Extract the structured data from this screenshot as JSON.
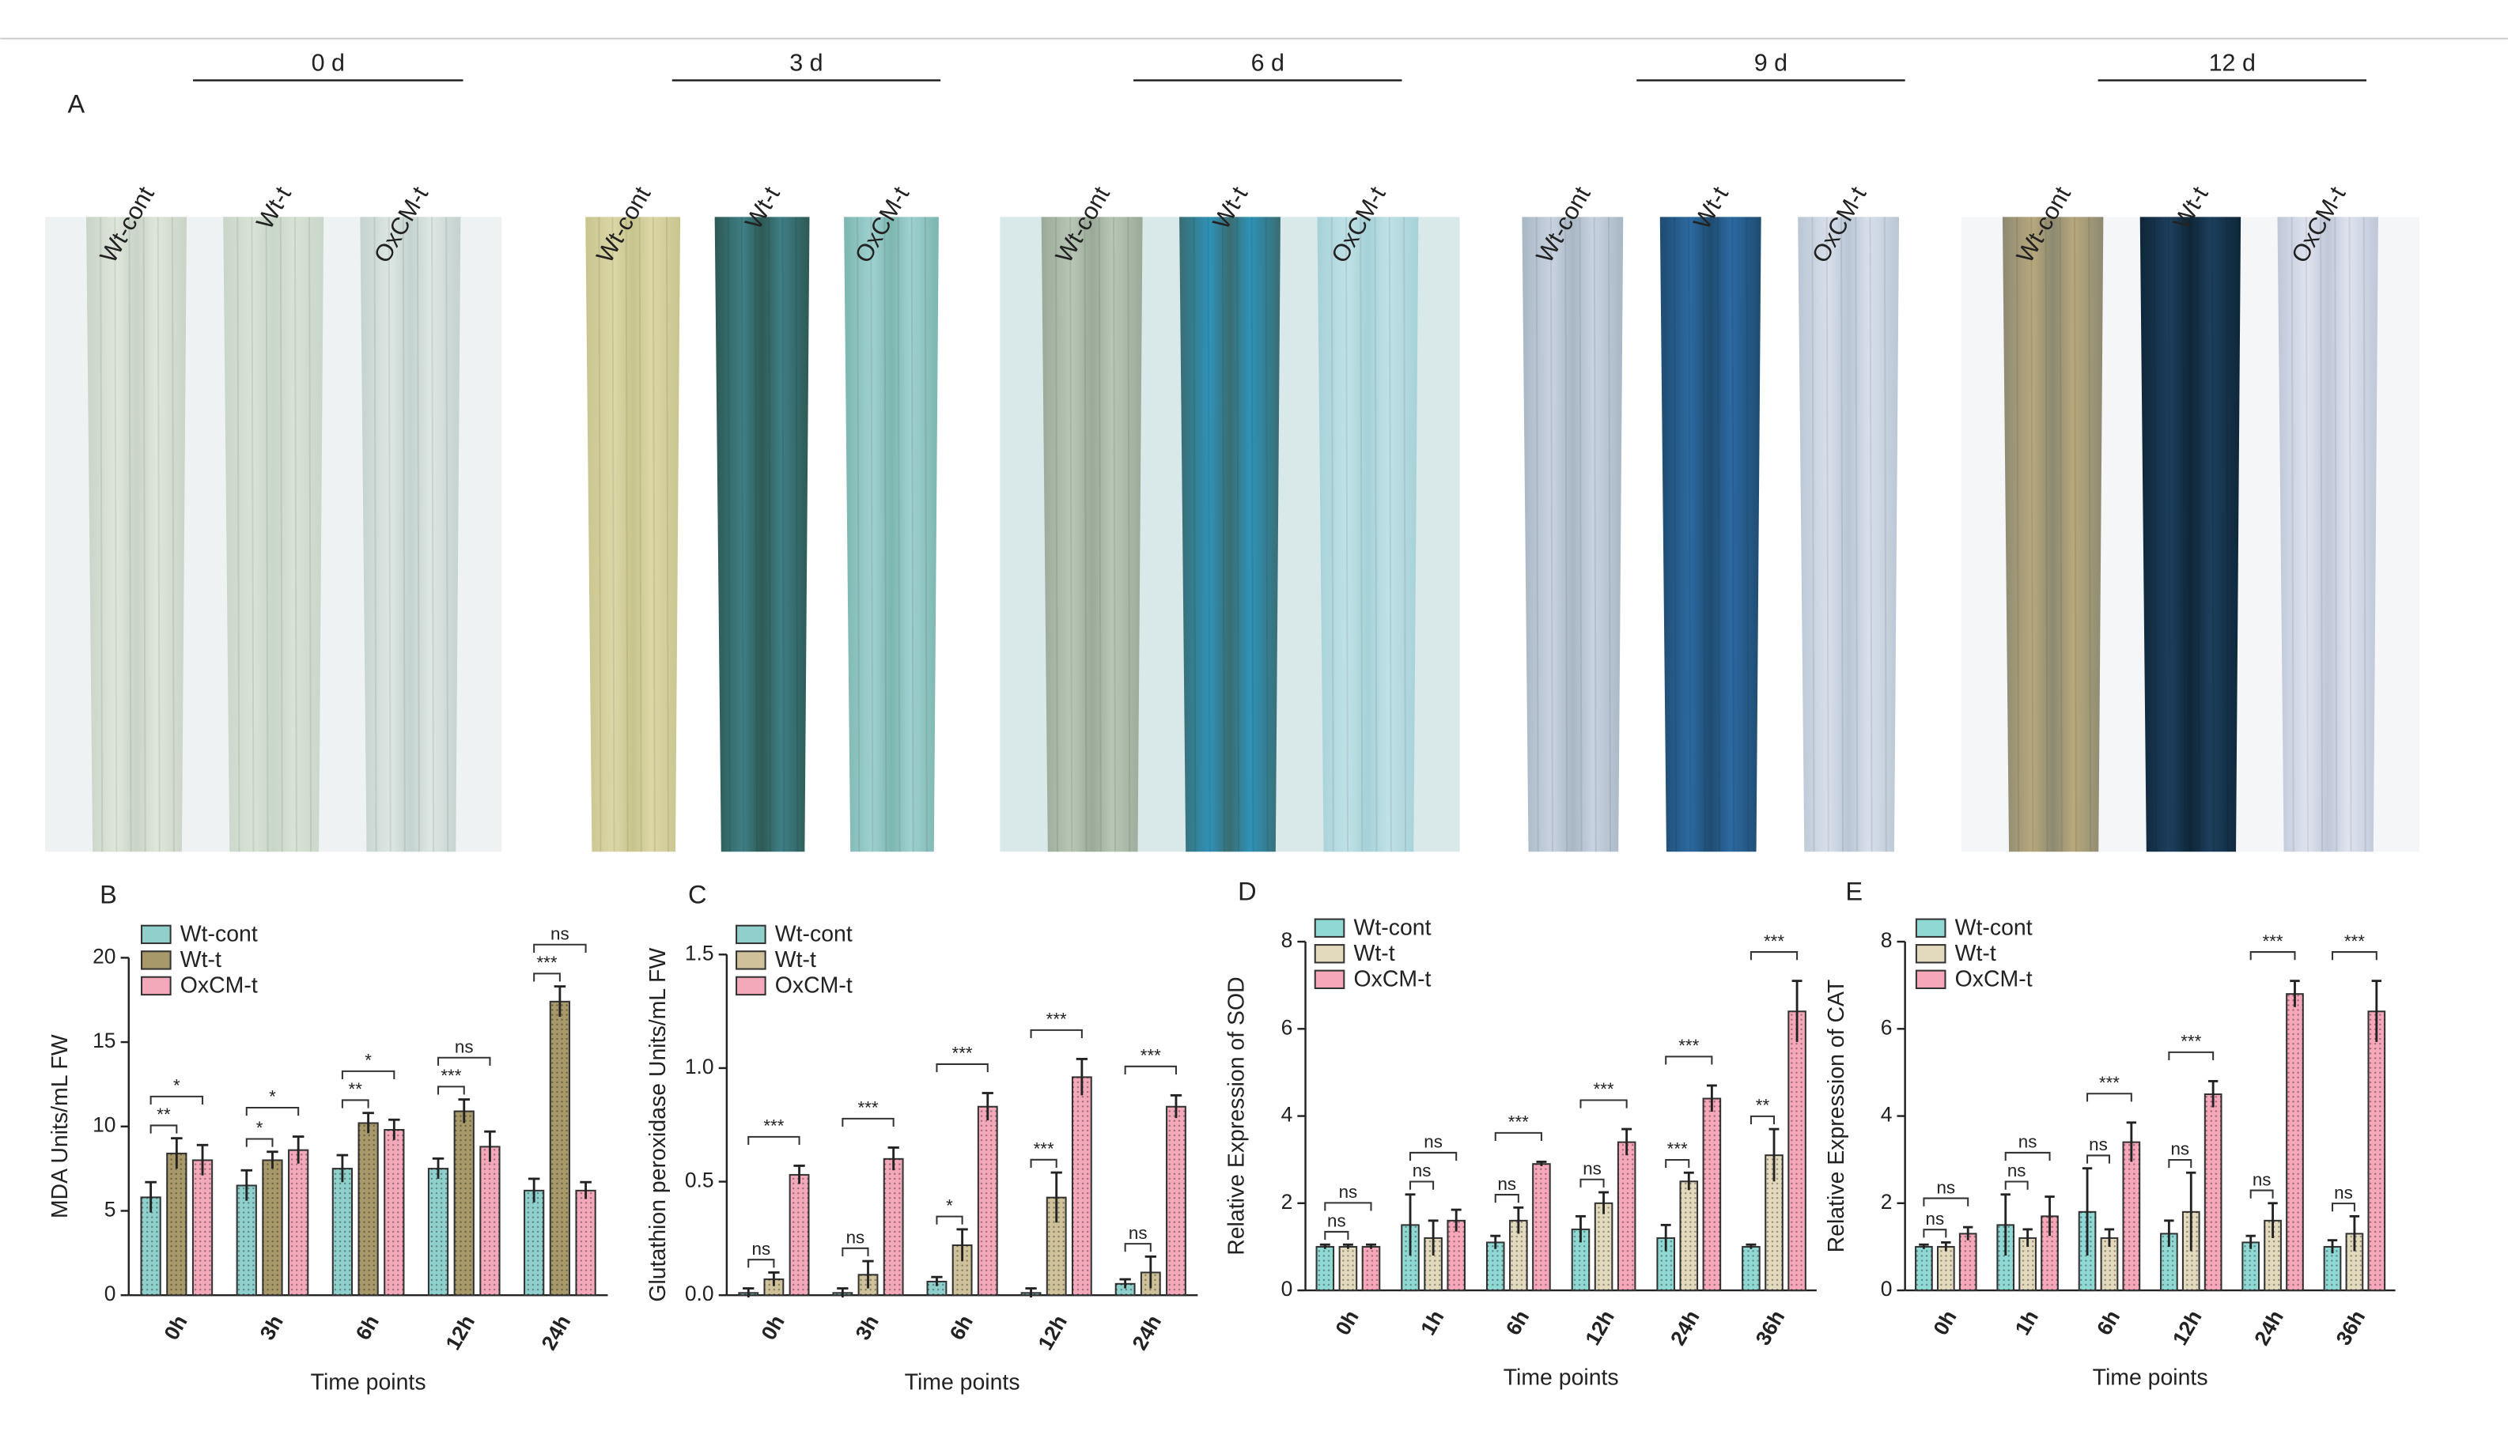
{
  "panel_a": {
    "label": "A",
    "groups": [
      {
        "title": "0 d",
        "lanes": [
          "Wt-cont",
          "Wt-t",
          "OxCM-t"
        ]
      },
      {
        "title": "3 d",
        "lanes": [
          "Wt-cont",
          "Wt-t",
          "OxCM-t"
        ]
      },
      {
        "title": "6 d",
        "lanes": [
          "Wt-cont",
          "Wt-t",
          "OxCM-t"
        ]
      },
      {
        "title": "9 d",
        "lanes": [
          "Wt-cont",
          "Wt-t",
          "OxCM-t"
        ]
      },
      {
        "title": "12 d",
        "lanes": [
          "Wt-cont",
          "Wt-t",
          "OxCM-t"
        ]
      }
    ]
  },
  "chart_data": [
    {
      "type": "bar",
      "panel": "B",
      "ylabel": "MDA Units/mL FW",
      "xlabel": "Time points",
      "categories": [
        "0h",
        "3h",
        "6h",
        "12h",
        "24h"
      ],
      "ylim": [
        0,
        20
      ],
      "yticks": [
        0,
        5,
        10,
        15,
        20
      ],
      "series": [
        {
          "name": "Wt-cont",
          "color": "#8fd0cc",
          "values": [
            5.8,
            6.5,
            7.5,
            7.5,
            6.2
          ],
          "errors": [
            0.9,
            0.9,
            0.8,
            0.6,
            0.7
          ]
        },
        {
          "name": "Wt-t",
          "color": "#a8996a",
          "values": [
            8.4,
            8.0,
            10.2,
            10.9,
            17.4
          ],
          "errors": [
            0.9,
            0.5,
            0.6,
            0.7,
            0.9
          ]
        },
        {
          "name": "OxCM-t",
          "color": "#f4a9bb",
          "values": [
            8.0,
            8.6,
            9.8,
            8.8,
            6.2
          ],
          "errors": [
            0.9,
            0.8,
            0.6,
            0.9,
            0.5
          ]
        }
      ],
      "significance": [
        [
          "**",
          "*"
        ],
        [
          "*",
          "*"
        ],
        [
          "**",
          "*"
        ],
        [
          "***",
          "ns"
        ],
        [
          "***",
          "ns"
        ]
      ]
    },
    {
      "type": "bar",
      "panel": "C",
      "ylabel": "Glutathion peroxidase Units/mL FW",
      "xlabel": "Time points",
      "categories": [
        "0h",
        "3h",
        "6h",
        "12h",
        "24h"
      ],
      "ylim": [
        0,
        1.5
      ],
      "yticks": [
        {
          "value": 0,
          "label": "0.0"
        },
        0.5,
        {
          "value": 1,
          "label": "1.0"
        },
        1.5
      ],
      "series": [
        {
          "name": "Wt-cont",
          "color": "#8fd0cc",
          "values": [
            0.01,
            0.01,
            0.06,
            0.01,
            0.05
          ],
          "errors": [
            0.02,
            0.02,
            0.02,
            0.02,
            0.02
          ]
        },
        {
          "name": "Wt-t",
          "color": "#cfc29a",
          "values": [
            0.07,
            0.09,
            0.22,
            0.43,
            0.1
          ],
          "errors": [
            0.03,
            0.06,
            0.07,
            0.11,
            0.07
          ]
        },
        {
          "name": "OxCM-t",
          "color": "#f4a9bb",
          "values": [
            0.53,
            0.6,
            0.83,
            0.96,
            0.83
          ],
          "errors": [
            0.04,
            0.05,
            0.06,
            0.08,
            0.05
          ]
        }
      ],
      "significance": [
        [
          "ns",
          "***"
        ],
        [
          "ns",
          "***"
        ],
        [
          "*",
          "***"
        ],
        [
          "***",
          "***"
        ],
        [
          "ns",
          "***"
        ]
      ]
    },
    {
      "type": "bar",
      "panel": "D",
      "ylabel": "Relative Expression of SOD",
      "xlabel": "Time points",
      "categories": [
        "0h",
        "1h",
        "6h",
        "12h",
        "24h",
        "36h"
      ],
      "ylim": [
        0,
        8
      ],
      "yticks": [
        0,
        2,
        4,
        6,
        8
      ],
      "series": [
        {
          "name": "Wt-cont",
          "color": "#8fd8d4",
          "values": [
            1.0,
            1.5,
            1.1,
            1.4,
            1.2,
            1.0
          ],
          "errors": [
            0.05,
            0.7,
            0.15,
            0.3,
            0.3,
            0.05
          ]
        },
        {
          "name": "Wt-t",
          "color": "#e3d9bd",
          "values": [
            1.0,
            1.2,
            1.6,
            2.0,
            2.5,
            3.1
          ],
          "errors": [
            0.05,
            0.4,
            0.3,
            0.25,
            0.2,
            0.6
          ]
        },
        {
          "name": "OxCM-t",
          "color": "#f6a8ba",
          "values": [
            1.0,
            1.6,
            2.9,
            3.4,
            4.4,
            6.4
          ],
          "errors": [
            0.05,
            0.25,
            0.05,
            0.3,
            0.3,
            0.7
          ]
        }
      ],
      "significance": [
        [
          "ns",
          "ns"
        ],
        [
          "ns",
          "ns"
        ],
        [
          "ns",
          "***"
        ],
        [
          "ns",
          "***"
        ],
        [
          "***",
          "***"
        ],
        [
          "**",
          "***"
        ]
      ]
    },
    {
      "type": "bar",
      "panel": "E",
      "ylabel": "Relative Expression of CAT",
      "xlabel": "Time points",
      "categories": [
        "0h",
        "1h",
        "6h",
        "12h",
        "24h",
        "36h"
      ],
      "ylim": [
        0,
        8
      ],
      "yticks": [
        0,
        2,
        4,
        6,
        8
      ],
      "series": [
        {
          "name": "Wt-cont",
          "color": "#8fd8d4",
          "values": [
            1.0,
            1.5,
            1.8,
            1.3,
            1.1,
            1.0
          ],
          "errors": [
            0.05,
            0.7,
            1.0,
            0.3,
            0.15,
            0.15
          ]
        },
        {
          "name": "Wt-t",
          "color": "#e3d9bd",
          "values": [
            1.0,
            1.2,
            1.2,
            1.8,
            1.6,
            1.3
          ],
          "errors": [
            0.1,
            0.2,
            0.2,
            0.9,
            0.4,
            0.4
          ]
        },
        {
          "name": "OxCM-t",
          "color": "#f6a8ba",
          "values": [
            1.3,
            1.7,
            3.4,
            4.5,
            6.8,
            6.4
          ],
          "errors": [
            0.15,
            0.45,
            0.45,
            0.3,
            0.3,
            0.7
          ]
        }
      ],
      "significance": [
        [
          "ns",
          "ns"
        ],
        [
          "ns",
          "ns"
        ],
        [
          "ns",
          "***"
        ],
        [
          "ns",
          "***"
        ],
        [
          "ns",
          "***"
        ],
        [
          "ns",
          "***"
        ]
      ]
    }
  ]
}
